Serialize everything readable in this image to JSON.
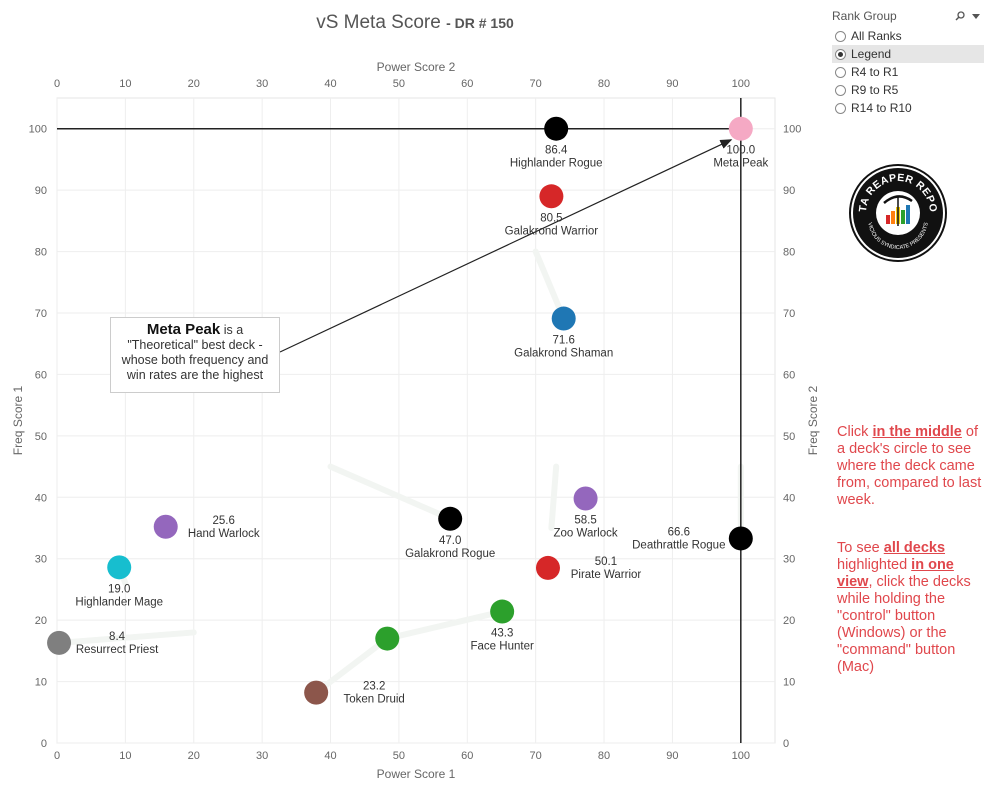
{
  "title": {
    "main": "vS Meta Score",
    "sub": "- DR # 150"
  },
  "filter": {
    "title": "Rank Group",
    "options": [
      "All Ranks",
      "Legend",
      "R4 to R1",
      "R9 to R5",
      "R14 to R10"
    ],
    "selected": 1
  },
  "logo": {
    "text": "DATA REAPER REPORT",
    "subtext": "VICIOUS SYNDICATE PRESENTS",
    "icon": "data-reaper-logo-icon"
  },
  "callout": {
    "bold": "Meta Peak",
    "rest": " is a \"Theoretical\" best deck - whose both frequency and win rates are the highest"
  },
  "notes": {
    "n1_pre": "Click ",
    "n1_bold": "in the middle",
    "n1_post": " of a deck's circle to see where the deck came from, compared to last week.",
    "n2_pre": "To see ",
    "n2_bold1": "all decks",
    "n2_mid": " highlighted ",
    "n2_bold2": "in one view",
    "n2_post": ", click the decks while holding the \"control\" button (Windows) or the \"command\" button (Mac)"
  },
  "chart_data": {
    "type": "scatter",
    "xlabel": "Power Score 1",
    "x2label": "Power Score 2",
    "ylabel": "Freq Score 1",
    "y2label": "Freq Score 2",
    "xlim": [
      0,
      105
    ],
    "ylim": [
      0,
      105
    ],
    "xticks": [
      0,
      10,
      20,
      30,
      40,
      50,
      60,
      70,
      80,
      90,
      100
    ],
    "yticks": [
      0,
      10,
      20,
      30,
      40,
      50,
      60,
      70,
      80,
      90,
      100
    ],
    "grid": true,
    "reference_lines": {
      "x": 100,
      "y": 100
    },
    "points": [
      {
        "name": "Highlander Rogue",
        "value": "86.4",
        "x": 73.0,
        "y": 100.0,
        "color": "#000000",
        "label_pos": "below"
      },
      {
        "name": "Meta Peak",
        "value": "100.0",
        "x": 100.0,
        "y": 100.0,
        "color": "#f5a9c4",
        "label_pos": "below"
      },
      {
        "name": "Galakrond Warrior",
        "value": "80.5",
        "x": 72.3,
        "y": 89.0,
        "color": "#d62728",
        "label_pos": "below"
      },
      {
        "name": "Galakrond Shaman",
        "value": "71.6",
        "x": 74.1,
        "y": 69.1,
        "color": "#1f77b4",
        "label_pos": "below"
      },
      {
        "name": "Zoo Warlock",
        "value": "58.5",
        "x": 77.3,
        "y": 39.8,
        "color": "#9467bd",
        "label_pos": "below"
      },
      {
        "name": "Deathrattle Rogue",
        "value": "66.6",
        "x": 100.0,
        "y": 33.3,
        "color": "#000000",
        "label_pos": "left"
      },
      {
        "name": "Galakrond Rogue",
        "value": "47.0",
        "x": 57.5,
        "y": 36.5,
        "color": "#000000",
        "label_pos": "below"
      },
      {
        "name": "Pirate Warrior",
        "value": "50.1",
        "x": 71.8,
        "y": 28.5,
        "color": "#d62728",
        "label_pos": "right"
      },
      {
        "name": "Hand Warlock",
        "value": "25.6",
        "x": 15.9,
        "y": 35.2,
        "color": "#9467bd",
        "label_pos": "right"
      },
      {
        "name": "Highlander Mage",
        "value": "19.0",
        "x": 9.1,
        "y": 28.6,
        "color": "#17becf",
        "label_pos": "below"
      },
      {
        "name": "Face Hunter",
        "value": "43.3",
        "x": 65.1,
        "y": 21.4,
        "color": "#2ca02c",
        "label_pos": "below"
      },
      {
        "name": "",
        "value": "",
        "x": 48.3,
        "y": 17.0,
        "color": "#2ca02c",
        "label_pos": "none"
      },
      {
        "name": "Resurrect Priest",
        "value": "8.4",
        "x": 0.3,
        "y": 16.3,
        "color": "#7f7f7f",
        "label_pos": "right"
      },
      {
        "name": "Token Druid",
        "value": "23.2",
        "x": 37.9,
        "y": 8.2,
        "color": "#8c564b",
        "label_pos": "right"
      }
    ]
  }
}
